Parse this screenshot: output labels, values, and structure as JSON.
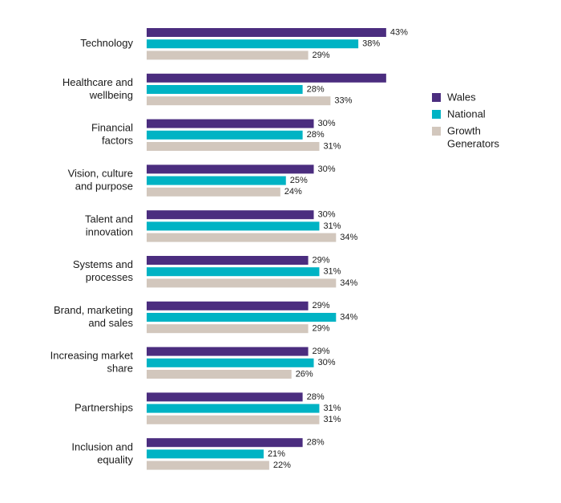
{
  "chart_data": {
    "type": "bar",
    "orientation": "horizontal",
    "xlim": [
      0,
      50
    ],
    "grid": false,
    "legend_position": "right",
    "categories": [
      [
        "Technology"
      ],
      [
        "Healthcare and",
        "wellbeing"
      ],
      [
        "Financial",
        "factors"
      ],
      [
        "Vision, culture",
        "and purpose"
      ],
      [
        "Talent and",
        "innovation"
      ],
      [
        "Systems and",
        "processes"
      ],
      [
        "Brand, marketing",
        "and sales"
      ],
      [
        "Increasing market",
        "share"
      ],
      [
        "Partnerships"
      ],
      [
        "Inclusion and",
        "equality"
      ]
    ],
    "series": [
      {
        "name": "Wales",
        "color": "#4b2d7f",
        "values": [
          43,
          43,
          30,
          30,
          30,
          29,
          29,
          29,
          28,
          28
        ],
        "labels": [
          "43%",
          "",
          "30%",
          "30%",
          "30%",
          "29%",
          "29%",
          "29%",
          "28%",
          "28%"
        ]
      },
      {
        "name": "National",
        "color": "#00b3c4",
        "values": [
          38,
          28,
          28,
          25,
          31,
          31,
          34,
          30,
          31,
          21
        ],
        "labels": [
          "38%",
          "28%",
          "28%",
          "25%",
          "31%",
          "31%",
          "34%",
          "30%",
          "31%",
          "21%"
        ]
      },
      {
        "name": "Growth Generators",
        "color": "#d2c7bd",
        "values": [
          29,
          33,
          31,
          24,
          34,
          34,
          29,
          26,
          31,
          22
        ],
        "labels": [
          "29%",
          "33%",
          "31%",
          "24%",
          "34%",
          "34%",
          "29%",
          "26%",
          "31%",
          "22%"
        ]
      }
    ],
    "legend": [
      [
        "Wales"
      ],
      [
        "National"
      ],
      [
        "Growth",
        "Generators"
      ]
    ]
  }
}
